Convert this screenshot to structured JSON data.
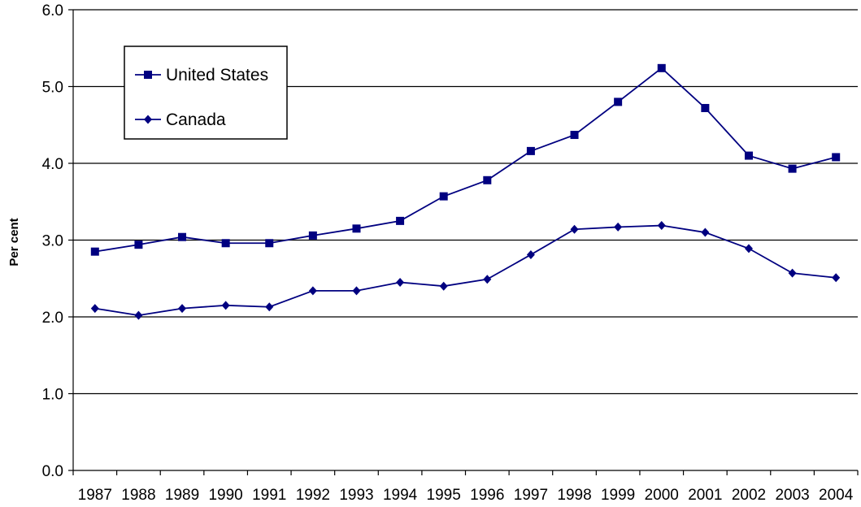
{
  "chart_data": {
    "type": "line",
    "title": "",
    "xlabel": "",
    "ylabel": "Per cent",
    "ylim": [
      0,
      6
    ],
    "yticks": [
      "0.0",
      "1.0",
      "2.0",
      "3.0",
      "4.0",
      "5.0",
      "6.0"
    ],
    "grid": "horizontal",
    "legend": "top-left",
    "categories": [
      "1987",
      "1988",
      "1989",
      "1990",
      "1991",
      "1992",
      "1993",
      "1994",
      "1995",
      "1996",
      "1997",
      "1998",
      "1999",
      "2000",
      "2001",
      "2002",
      "2003",
      "2004"
    ],
    "series": [
      {
        "name": "United States",
        "marker": "square",
        "color": "#000080",
        "values": [
          2.85,
          2.94,
          3.04,
          2.96,
          2.96,
          3.06,
          3.15,
          3.25,
          3.57,
          3.78,
          4.16,
          4.37,
          4.8,
          5.24,
          4.72,
          4.1,
          3.93,
          4.08
        ]
      },
      {
        "name": "Canada",
        "marker": "diamond",
        "color": "#000080",
        "values": [
          2.11,
          2.02,
          2.11,
          2.15,
          2.13,
          2.34,
          2.34,
          2.45,
          2.4,
          2.49,
          2.81,
          3.14,
          3.17,
          3.19,
          3.1,
          2.89,
          2.57,
          2.51
        ]
      }
    ]
  }
}
